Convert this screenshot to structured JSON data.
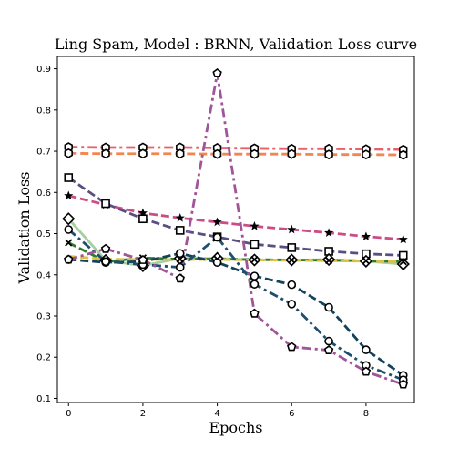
{
  "chart_data": {
    "type": "line",
    "title": "Ling Spam, Model : BRNN, Validation Loss curve",
    "xlabel": "Epochs",
    "ylabel": "Validation Loss",
    "xlim": [
      -0.3,
      9.3
    ],
    "ylim": [
      0.09,
      0.93
    ],
    "xticks": [
      0,
      2,
      4,
      6,
      8
    ],
    "yticks": [
      0.1,
      0.2,
      0.3,
      0.4,
      0.5,
      0.6,
      0.7,
      0.8,
      0.9
    ],
    "grid": false,
    "legend": "none",
    "x": [
      0,
      1,
      2,
      3,
      4,
      5,
      6,
      7,
      8,
      9
    ],
    "series": [
      {
        "values": [
          0.71,
          0.709,
          0.709,
          0.709,
          0.708,
          0.707,
          0.706,
          0.706,
          0.705,
          0.704
        ],
        "color": "#e8606a",
        "dash": "dashdot",
        "marker": "hexagon"
      },
      {
        "values": [
          0.695,
          0.694,
          0.694,
          0.694,
          0.693,
          0.693,
          0.693,
          0.692,
          0.692,
          0.691
        ],
        "color": "#f28550",
        "dash": "dashed",
        "marker": "hexagon"
      },
      {
        "values": [
          0.592,
          0.57,
          0.55,
          0.538,
          0.528,
          0.518,
          0.51,
          0.502,
          0.493,
          0.486
        ],
        "color": "#cc4c86",
        "dash": "dashed",
        "marker": "star"
      },
      {
        "values": [
          0.636,
          0.573,
          0.536,
          0.508,
          0.492,
          0.474,
          0.466,
          0.457,
          0.451,
          0.447
        ],
        "color": "#5a4f85",
        "dash": "dashed",
        "marker": "square"
      },
      {
        "values": [
          0.536,
          0.435,
          0.422,
          0.44,
          0.44,
          0.436,
          0.436,
          0.437,
          0.433,
          0.426
        ],
        "color": "#a8cfa0",
        "dash": "solid",
        "marker": "diamond"
      },
      {
        "values": [
          0.478,
          0.432,
          0.441,
          0.438,
          0.438,
          0.437,
          0.436,
          0.435,
          0.434,
          0.432
        ],
        "color": "#2e7a2e",
        "dash": "dashed",
        "marker": "x"
      },
      {
        "values": [
          0.445,
          0.438,
          0.437,
          0.437,
          0.437,
          0.436,
          0.435,
          0.434,
          0.433,
          0.432
        ],
        "color": "#e0c040",
        "dash": "dashed",
        "marker": "none"
      },
      {
        "values": [
          0.437,
          0.43,
          0.432,
          0.452,
          0.43,
          0.397,
          0.376,
          0.321,
          0.218,
          0.156
        ],
        "color": "#14425c",
        "dash": "dashed",
        "marker": "circle"
      },
      {
        "values": [
          0.51,
          0.432,
          0.425,
          0.418,
          0.491,
          0.377,
          0.329,
          0.239,
          0.18,
          0.145
        ],
        "color": "#1e4f6e",
        "dash": "dashdot",
        "marker": "circle"
      },
      {
        "values": [
          0.437,
          0.463,
          0.436,
          0.391,
          0.889,
          0.306,
          0.225,
          0.217,
          0.165,
          0.134
        ],
        "color": "#a0559a",
        "dash": "dashdot",
        "marker": "pentagon"
      }
    ]
  }
}
